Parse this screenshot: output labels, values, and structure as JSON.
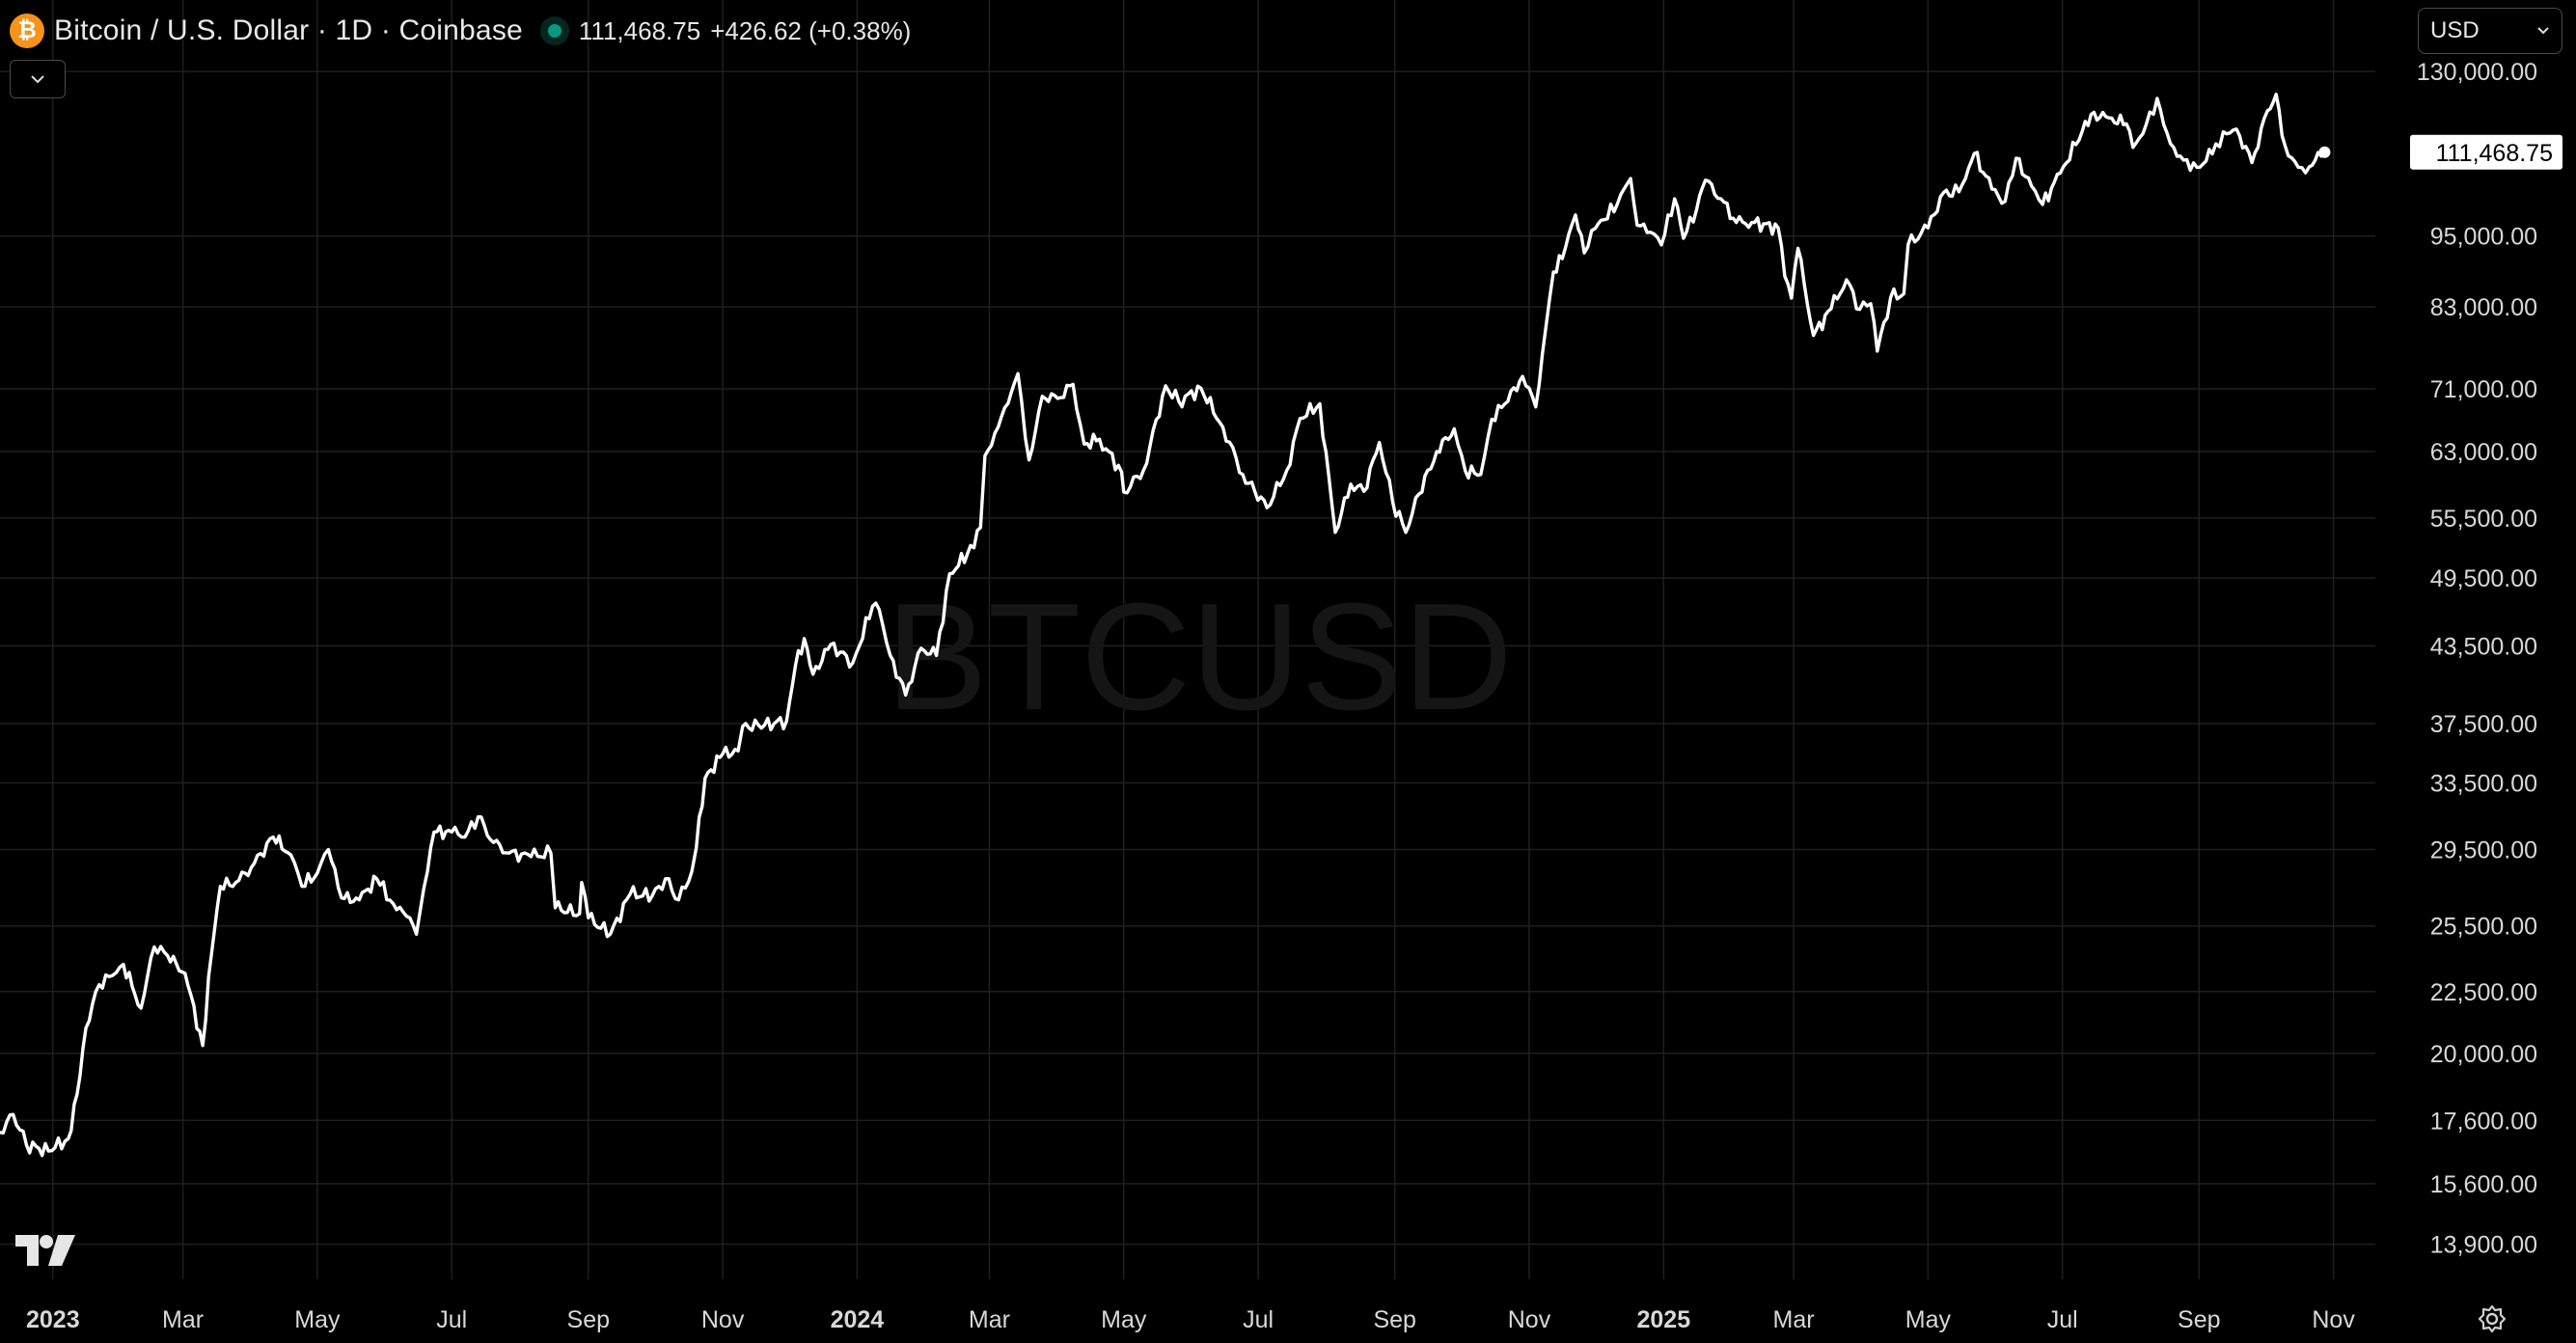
{
  "header": {
    "title": "Bitcoin / U.S. Dollar · 1D · Coinbase",
    "price": "111,468.75",
    "change": "+426.62 (+0.38%)",
    "coin_symbol": "₿"
  },
  "controls": {
    "currency": "USD",
    "collapse_icon": "chevron-down-icon",
    "settings_icon": "gear-icon"
  },
  "watermark": "BTCUSD",
  "colors": {
    "background": "#000000",
    "line": "#ffffff",
    "grid": "#1f1f1f",
    "accent": "#f7931a",
    "live": "#089981"
  },
  "chart_data": {
    "type": "line",
    "scale": "log",
    "grid": true,
    "ylim": [
      13000,
      141000
    ],
    "last_value": 111468.75,
    "last_value_label": "111,468.75",
    "y_ticks": [
      {
        "value": 130000,
        "label": "130,000.00"
      },
      {
        "value": 95000,
        "label": "95,000.00"
      },
      {
        "value": 83000,
        "label": "83,000.00"
      },
      {
        "value": 71000,
        "label": "71,000.00"
      },
      {
        "value": 63000,
        "label": "63,000.00"
      },
      {
        "value": 55500,
        "label": "55,500.00"
      },
      {
        "value": 49500,
        "label": "49,500.00"
      },
      {
        "value": 43500,
        "label": "43,500.00"
      },
      {
        "value": 37500,
        "label": "37,500.00"
      },
      {
        "value": 33500,
        "label": "33,500.00"
      },
      {
        "value": 29500,
        "label": "29,500.00"
      },
      {
        "value": 25500,
        "label": "25,500.00"
      },
      {
        "value": 22500,
        "label": "22,500.00"
      },
      {
        "value": 20000,
        "label": "20,000.00"
      },
      {
        "value": 17600,
        "label": "17,600.00"
      },
      {
        "value": 15600,
        "label": "15,600.00"
      },
      {
        "value": 13900,
        "label": "13,900.00"
      }
    ],
    "x_ticks": [
      {
        "date": "2023-01-01",
        "label": "2023",
        "bold": true
      },
      {
        "date": "2023-03-01",
        "label": "Mar"
      },
      {
        "date": "2023-05-01",
        "label": "May"
      },
      {
        "date": "2023-07-01",
        "label": "Jul"
      },
      {
        "date": "2023-09-01",
        "label": "Sep"
      },
      {
        "date": "2023-11-01",
        "label": "Nov"
      },
      {
        "date": "2024-01-01",
        "label": "2024",
        "bold": true
      },
      {
        "date": "2024-03-01",
        "label": "Mar"
      },
      {
        "date": "2024-05-01",
        "label": "May"
      },
      {
        "date": "2024-07-01",
        "label": "Jul"
      },
      {
        "date": "2024-09-01",
        "label": "Sep"
      },
      {
        "date": "2024-11-01",
        "label": "Nov"
      },
      {
        "date": "2025-01-01",
        "label": "2025",
        "bold": true
      },
      {
        "date": "2025-03-01",
        "label": "Mar"
      },
      {
        "date": "2025-05-01",
        "label": "May"
      },
      {
        "date": "2025-07-01",
        "label": "Jul"
      },
      {
        "date": "2025-09-01",
        "label": "Sep"
      },
      {
        "date": "2025-11-01",
        "label": "Nov"
      }
    ],
    "xlim": [
      "2022-12-08",
      "2025-11-20"
    ],
    "series": [
      {
        "points": [
          [
            "2022-12-08",
            17200
          ],
          [
            "2022-12-14",
            17800
          ],
          [
            "2022-12-20",
            16800
          ],
          [
            "2022-12-30",
            16600
          ],
          [
            "2023-01-08",
            17000
          ],
          [
            "2023-01-12",
            18500
          ],
          [
            "2023-01-16",
            21000
          ],
          [
            "2023-01-22",
            22800
          ],
          [
            "2023-01-28",
            23200
          ],
          [
            "2023-02-02",
            23700
          ],
          [
            "2023-02-10",
            21800
          ],
          [
            "2023-02-16",
            24500
          ],
          [
            "2023-02-22",
            24100
          ],
          [
            "2023-03-02",
            23300
          ],
          [
            "2023-03-10",
            20300
          ],
          [
            "2023-03-14",
            24200
          ],
          [
            "2023-03-18",
            27500
          ],
          [
            "2023-03-25",
            27700
          ],
          [
            "2023-04-01",
            28500
          ],
          [
            "2023-04-11",
            30200
          ],
          [
            "2023-04-19",
            29200
          ],
          [
            "2023-04-24",
            27500
          ],
          [
            "2023-05-01",
            28200
          ],
          [
            "2023-05-06",
            29500
          ],
          [
            "2023-05-12",
            26900
          ],
          [
            "2023-05-20",
            26800
          ],
          [
            "2023-05-28",
            27900
          ],
          [
            "2023-06-06",
            26300
          ],
          [
            "2023-06-12",
            25900
          ],
          [
            "2023-06-15",
            25100
          ],
          [
            "2023-06-20",
            28300
          ],
          [
            "2023-06-23",
            30500
          ],
          [
            "2023-07-01",
            30500
          ],
          [
            "2023-07-07",
            30200
          ],
          [
            "2023-07-13",
            31400
          ],
          [
            "2023-07-20",
            29900
          ],
          [
            "2023-07-27",
            29300
          ],
          [
            "2023-08-06",
            29100
          ],
          [
            "2023-08-15",
            29300
          ],
          [
            "2023-08-17",
            26400
          ],
          [
            "2023-08-28",
            26100
          ],
          [
            "2023-08-29",
            27700
          ],
          [
            "2023-09-01",
            25900
          ],
          [
            "2023-09-11",
            25100
          ],
          [
            "2023-09-20",
            27100
          ],
          [
            "2023-09-30",
            27000
          ],
          [
            "2023-10-06",
            27900
          ],
          [
            "2023-10-12",
            26800
          ],
          [
            "2023-10-18",
            28300
          ],
          [
            "2023-10-20",
            29600
          ],
          [
            "2023-10-24",
            33800
          ],
          [
            "2023-11-01",
            35400
          ],
          [
            "2023-11-08",
            35600
          ],
          [
            "2023-11-10",
            37300
          ],
          [
            "2023-11-20",
            37400
          ],
          [
            "2023-11-30",
            37700
          ],
          [
            "2023-12-04",
            41900
          ],
          [
            "2023-12-08",
            44100
          ],
          [
            "2023-12-12",
            41200
          ],
          [
            "2023-12-20",
            43600
          ],
          [
            "2023-12-30",
            42100
          ],
          [
            "2024-01-08",
            46900
          ],
          [
            "2024-01-11",
            46600
          ],
          [
            "2024-01-16",
            42700
          ],
          [
            "2024-01-23",
            39600
          ],
          [
            "2024-01-30",
            43300
          ],
          [
            "2024-02-06",
            42700
          ],
          [
            "2024-02-12",
            49900
          ],
          [
            "2024-02-20",
            51800
          ],
          [
            "2024-02-26",
            54500
          ],
          [
            "2024-02-28",
            62500
          ],
          [
            "2024-03-05",
            66000
          ],
          [
            "2024-03-08",
            68500
          ],
          [
            "2024-03-14",
            73100
          ],
          [
            "2024-03-19",
            62000
          ],
          [
            "2024-03-25",
            70000
          ],
          [
            "2024-04-01",
            69700
          ],
          [
            "2024-04-08",
            71600
          ],
          [
            "2024-04-13",
            63900
          ],
          [
            "2024-04-20",
            64500
          ],
          [
            "2024-04-30",
            60600
          ],
          [
            "2024-05-01",
            58300
          ],
          [
            "2024-05-10",
            60800
          ],
          [
            "2024-05-20",
            71400
          ],
          [
            "2024-05-26",
            69300
          ],
          [
            "2024-06-05",
            71100
          ],
          [
            "2024-06-15",
            66000
          ],
          [
            "2024-06-24",
            60300
          ],
          [
            "2024-07-05",
            56600
          ],
          [
            "2024-07-14",
            60800
          ],
          [
            "2024-07-20",
            67100
          ],
          [
            "2024-07-29",
            69000
          ],
          [
            "2024-08-05",
            54000
          ],
          [
            "2024-08-12",
            59200
          ],
          [
            "2024-08-18",
            58400
          ],
          [
            "2024-08-25",
            64100
          ],
          [
            "2024-08-31",
            57300
          ],
          [
            "2024-09-06",
            54000
          ],
          [
            "2024-09-12",
            58100
          ],
          [
            "2024-09-20",
            63000
          ],
          [
            "2024-09-28",
            65800
          ],
          [
            "2024-10-03",
            60700
          ],
          [
            "2024-10-10",
            60300
          ],
          [
            "2024-10-15",
            67000
          ],
          [
            "2024-10-21",
            69000
          ],
          [
            "2024-10-29",
            72700
          ],
          [
            "2024-11-04",
            68600
          ],
          [
            "2024-11-07",
            75900
          ],
          [
            "2024-11-12",
            88700
          ],
          [
            "2024-11-16",
            91000
          ],
          [
            "2024-11-22",
            98900
          ],
          [
            "2024-11-26",
            92000
          ],
          [
            "2024-12-01",
            96400
          ],
          [
            "2024-12-05",
            98000
          ],
          [
            "2024-12-11",
            101000
          ],
          [
            "2024-12-17",
            106000
          ],
          [
            "2024-12-20",
            97000
          ],
          [
            "2024-12-26",
            95700
          ],
          [
            "2024-12-31",
            93400
          ],
          [
            "2025-01-06",
            102000
          ],
          [
            "2025-01-10",
            94600
          ],
          [
            "2025-01-16",
            100000
          ],
          [
            "2025-01-20",
            105700
          ],
          [
            "2025-01-27",
            102000
          ],
          [
            "2025-02-03",
            97500
          ],
          [
            "2025-02-10",
            97500
          ],
          [
            "2025-02-22",
            96500
          ],
          [
            "2025-02-25",
            88000
          ],
          [
            "2025-02-28",
            84400
          ],
          [
            "2025-03-03",
            92800
          ],
          [
            "2025-03-10",
            78600
          ],
          [
            "2025-03-18",
            82700
          ],
          [
            "2025-03-25",
            87400
          ],
          [
            "2025-03-31",
            82600
          ],
          [
            "2025-04-05",
            83500
          ],
          [
            "2025-04-08",
            76300
          ],
          [
            "2025-04-14",
            84500
          ],
          [
            "2025-04-20",
            85100
          ],
          [
            "2025-04-22",
            93500
          ],
          [
            "2025-05-01",
            96500
          ],
          [
            "2025-05-08",
            103200
          ],
          [
            "2025-05-12",
            102500
          ],
          [
            "2025-05-18",
            106000
          ],
          [
            "2025-05-22",
            111200
          ],
          [
            "2025-05-30",
            103900
          ],
          [
            "2025-06-05",
            101500
          ],
          [
            "2025-06-10",
            110200
          ],
          [
            "2025-06-17",
            104500
          ],
          [
            "2025-06-22",
            100900
          ],
          [
            "2025-06-30",
            107100
          ],
          [
            "2025-07-10",
            116000
          ],
          [
            "2025-07-14",
            119800
          ],
          [
            "2025-07-22",
            119000
          ],
          [
            "2025-07-30",
            117700
          ],
          [
            "2025-08-02",
            112500
          ],
          [
            "2025-08-08",
            117500
          ],
          [
            "2025-08-13",
            123500
          ],
          [
            "2025-08-19",
            113300
          ],
          [
            "2025-08-25",
            109800
          ],
          [
            "2025-08-31",
            108300
          ],
          [
            "2025-09-07",
            111100
          ],
          [
            "2025-09-12",
            115900
          ],
          [
            "2025-09-18",
            116500
          ],
          [
            "2025-09-25",
            109300
          ],
          [
            "2025-10-02",
            120600
          ],
          [
            "2025-10-06",
            124500
          ],
          [
            "2025-10-10",
            112900
          ],
          [
            "2025-10-16",
            108300
          ],
          [
            "2025-10-21",
            108400
          ],
          [
            "2025-10-25",
            111400
          ],
          [
            "2025-10-28",
            111469
          ]
        ]
      }
    ]
  }
}
